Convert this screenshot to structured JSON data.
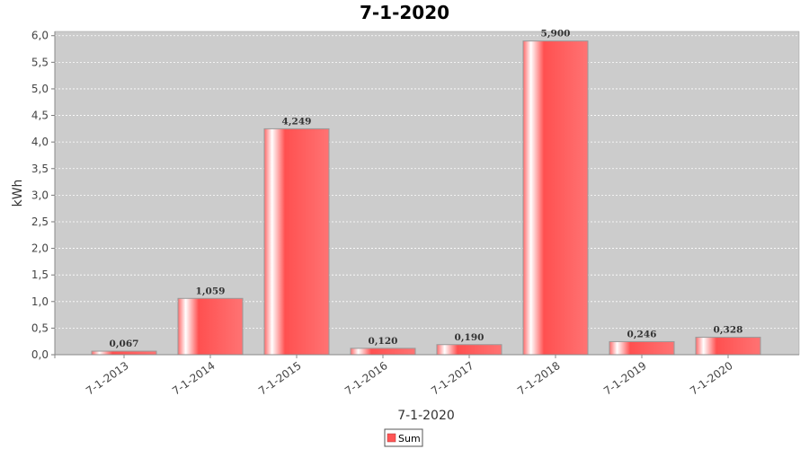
{
  "chart_data": {
    "type": "bar",
    "title": "7-1-2020",
    "xlabel": "7-1-2020",
    "ylabel": "kWh",
    "categories": [
      "7-1-2013",
      "7-1-2014",
      "7-1-2015",
      "7-1-2016",
      "7-1-2017",
      "7-1-2018",
      "7-1-2019",
      "7-1-2020"
    ],
    "series": [
      {
        "name": "Sum",
        "values": [
          0.067,
          1.059,
          4.249,
          0.12,
          0.19,
          5.9,
          0.246,
          0.328
        ],
        "labels": [
          "0,067",
          "1,059",
          "4,249",
          "0,120",
          "0,190",
          "5,900",
          "0,246",
          "0,328"
        ]
      }
    ],
    "ylim": [
      0,
      6.0
    ],
    "yticks": [
      "0,0",
      "0,5",
      "1,0",
      "1,5",
      "2,0",
      "2,5",
      "3,0",
      "3,5",
      "4,0",
      "4,5",
      "5,0",
      "5,5",
      "6,0"
    ],
    "grid": true,
    "legend": "bottom",
    "colors": {
      "bar": "#ff5555",
      "plot_background": "#cccccc",
      "gridline": "#ffffff"
    }
  }
}
